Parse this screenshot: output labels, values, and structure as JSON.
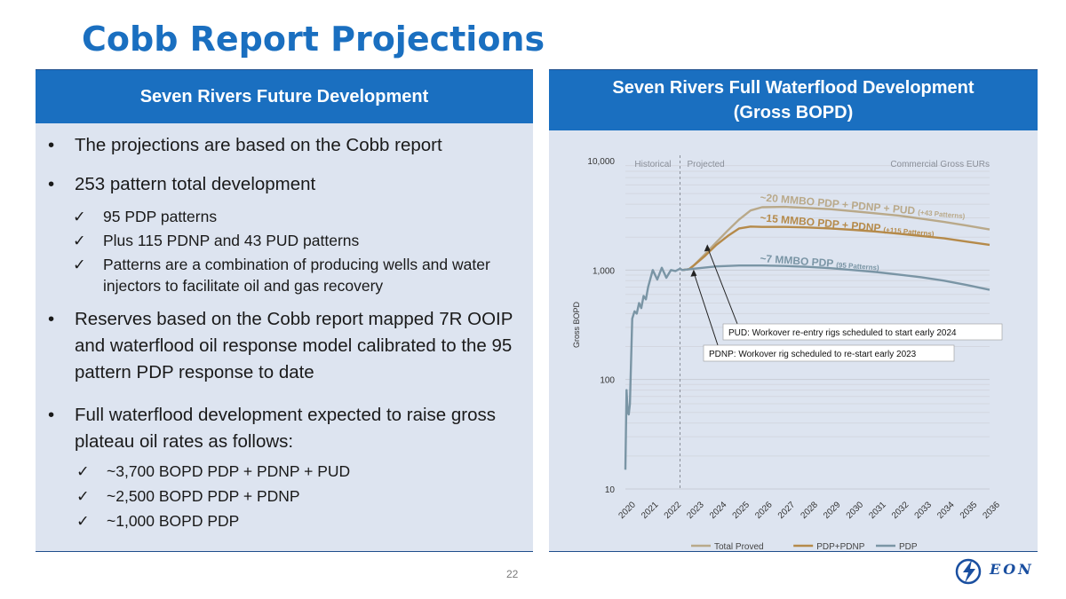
{
  "slide": {
    "title": "Cobb Report Projections",
    "page_number": "22",
    "logo_text": "EON"
  },
  "left_panel": {
    "header": "Seven Rivers Future Development",
    "bullets": [
      "The projections are based on the Cobb report",
      "253 pattern total development",
      "Reserves based on the Cobb report mapped 7R OOIP and waterflood oil response model calibrated to the 95 pattern PDP response to date",
      "Full waterflood development expected to raise gross plateau oil rates as follows:"
    ],
    "sub_bullets_a": [
      "95 PDP patterns",
      "Plus 115 PDNP and 43 PUD patterns",
      "Patterns are a combination of producing wells and water injectors to facilitate oil and gas recovery"
    ],
    "sub_bullets_b": [
      "~3,700 BOPD PDP + PDNP + PUD",
      "~2,500 BOPD PDP + PDNP",
      "~1,000 BOPD PDP"
    ],
    "bullet_glyph": "•",
    "check_glyph": "✓"
  },
  "right_panel": {
    "header_line1": "Seven Rivers Full Waterflood Development",
    "header_line2": "(Gross BOPD)"
  },
  "chart_data": {
    "type": "line",
    "title": "Seven Rivers Full Waterflood Development (Gross BOPD)",
    "xlabel": "",
    "ylabel": "Gross BOPD",
    "yscale": "log",
    "ylim": [
      10,
      10000
    ],
    "xlim": [
      2020,
      2036
    ],
    "x_ticks": [
      "2020",
      "2021",
      "2022",
      "2023",
      "2024",
      "2025",
      "2026",
      "2027",
      "2028",
      "2029",
      "2030",
      "2031",
      "2032",
      "2033",
      "2034",
      "2035",
      "2036"
    ],
    "y_ticks": [
      "10",
      "100",
      "1,000",
      "10,000"
    ],
    "region_labels": {
      "historical": "Historical",
      "projected": "Projected",
      "right": "Commercial Gross EURs"
    },
    "divider_x": 2022.4,
    "series": [
      {
        "name": "Total Proved",
        "color": "#b9a98a",
        "x": [
          2022.5,
          2022.8,
          2023.0,
          2023.5,
          2024.0,
          2024.5,
          2025.0,
          2025.5,
          2026.0,
          2027.0,
          2028.0,
          2029.0,
          2030.0,
          2031.0,
          2032.0,
          2033.0,
          2034.0,
          2035.0,
          2036.0
        ],
        "y": [
          1000,
          1020,
          1100,
          1400,
          1800,
          2300,
          2900,
          3500,
          3750,
          3780,
          3700,
          3600,
          3450,
          3300,
          3150,
          2950,
          2750,
          2550,
          2350
        ]
      },
      {
        "name": "PDP+PDNP",
        "color": "#b58a4a",
        "x": [
          2022.5,
          2022.8,
          2023.0,
          2023.5,
          2024.0,
          2024.5,
          2025.0,
          2025.5,
          2026.0,
          2027.0,
          2028.0,
          2029.0,
          2030.0,
          2031.0,
          2032.0,
          2033.0,
          2034.0,
          2035.0,
          2036.0
        ],
        "y": [
          1000,
          1020,
          1100,
          1350,
          1700,
          2050,
          2400,
          2500,
          2480,
          2480,
          2450,
          2400,
          2330,
          2250,
          2150,
          2050,
          1950,
          1820,
          1700
        ]
      },
      {
        "name": "PDP",
        "color": "#7a95a5",
        "x": [
          2020.0,
          2020.05,
          2020.1,
          2020.15,
          2020.2,
          2020.3,
          2020.4,
          2020.5,
          2020.6,
          2020.7,
          2020.8,
          2020.9,
          2021.0,
          2021.2,
          2021.4,
          2021.6,
          2021.8,
          2022.0,
          2022.2,
          2022.4,
          2022.5,
          2023.0,
          2024.0,
          2025.0,
          2026.0,
          2027.0,
          2028.0,
          2029.0,
          2030.0,
          2031.0,
          2032.0,
          2033.0,
          2034.0,
          2035.0,
          2036.0
        ],
        "y": [
          15,
          80,
          50,
          48,
          60,
          360,
          420,
          400,
          500,
          450,
          580,
          540,
          700,
          1000,
          820,
          1050,
          850,
          1000,
          980,
          1030,
          1000,
          1030,
          1080,
          1100,
          1100,
          1090,
          1070,
          1040,
          1000,
          960,
          910,
          860,
          800,
          730,
          660
        ]
      }
    ],
    "annotations": [
      {
        "text": "~20 MMBO PDP + PDNP + PUD",
        "small": "(+43 Patterns)",
        "color": "#b9a98a"
      },
      {
        "text": "~15 MMBO PDP + PDNP",
        "small": "(+115 Patterns)",
        "color": "#b58a4a"
      },
      {
        "text": "~7 MMBO PDP",
        "small": "(95 Patterns)",
        "color": "#7a95a5"
      },
      {
        "text": "PUD: Workover re-entry rigs scheduled to start early 2024",
        "arrow_to_x": 2023.6
      },
      {
        "text": "PDNP: Workover rig scheduled to re-start early 2023",
        "arrow_to_x": 2023.0
      }
    ],
    "legend": [
      "Total Proved",
      "PDP+PDNP",
      "PDP"
    ],
    "legend_position": "bottom"
  }
}
